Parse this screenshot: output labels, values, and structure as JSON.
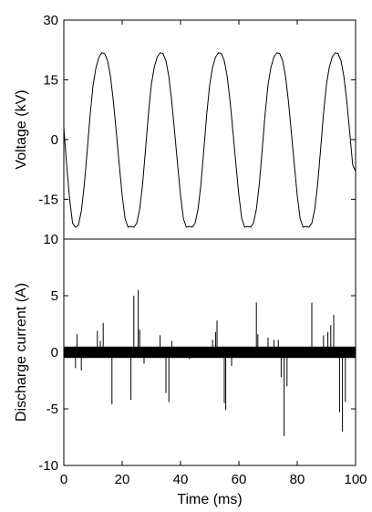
{
  "chart_data": [
    {
      "type": "line",
      "title": "",
      "xlabel": "",
      "ylabel": "Voltage (kV)",
      "xlim": [
        0,
        100
      ],
      "ylim": [
        -25,
        30
      ],
      "yticks": [
        30,
        15,
        0,
        -15
      ],
      "y_tick_labels": [
        "30",
        "15",
        "0",
        "-15"
      ],
      "grid": false,
      "legend": "none",
      "line_color": "#000000",
      "series": [
        {
          "x": [
            0,
            1,
            2,
            3,
            4,
            5,
            6,
            7,
            8,
            9,
            10,
            11,
            12,
            13,
            14,
            15,
            16,
            17,
            18,
            19,
            20,
            21,
            22,
            23,
            24,
            25,
            26,
            27,
            28,
            29,
            30,
            31,
            32,
            33,
            34,
            35,
            36,
            37,
            38,
            39,
            40,
            41,
            42,
            43,
            44,
            45,
            46,
            47,
            48,
            49,
            50,
            51,
            52,
            53,
            54,
            55,
            56,
            57,
            58,
            59,
            60,
            61,
            62,
            63,
            64,
            65,
            66,
            67,
            68,
            69,
            70,
            71,
            72,
            73,
            74,
            75,
            76,
            77,
            78,
            79,
            80,
            81,
            82,
            83,
            84,
            85,
            86,
            87,
            88,
            89,
            90,
            91,
            92,
            93,
            94,
            95,
            96,
            97,
            98,
            99,
            100
          ],
          "values": [
            3.0,
            -6.6,
            -15.0,
            -21.0,
            -22.0,
            -21.5,
            -18.0,
            -11.5,
            -3.0,
            6.0,
            13.5,
            18.0,
            20.6,
            21.8,
            21.6,
            19.8,
            15.8,
            9.5,
            1.7,
            -6.3,
            -14.0,
            -19.9,
            -22.0,
            -21.8,
            -22.0,
            -21.0,
            -17.5,
            -11.2,
            -2.5,
            6.5,
            13.8,
            18.2,
            20.7,
            21.8,
            21.6,
            19.8,
            15.8,
            9.5,
            1.7,
            -6.3,
            -14.0,
            -19.9,
            -22.0,
            -21.8,
            -22.0,
            -21.0,
            -17.5,
            -11.2,
            -2.5,
            6.5,
            13.8,
            18.2,
            20.7,
            21.8,
            21.6,
            19.8,
            15.8,
            9.5,
            1.7,
            -6.3,
            -14.0,
            -19.9,
            -22.0,
            -21.8,
            -22.0,
            -21.0,
            -17.5,
            -11.2,
            -2.5,
            6.5,
            13.8,
            18.2,
            20.7,
            21.8,
            21.6,
            19.8,
            15.8,
            9.5,
            1.7,
            -6.3,
            -14.0,
            -19.9,
            -22.0,
            -21.8,
            -22.0,
            -21.0,
            -17.5,
            -11.2,
            -2.5,
            6.5,
            13.8,
            18.2,
            20.7,
            21.8,
            21.6,
            19.8,
            15.8,
            9.5,
            1.7,
            -6.3,
            -8.0
          ]
        }
      ]
    },
    {
      "type": "line",
      "title": "",
      "xlabel": "Time (ms)",
      "ylabel": "Discharge current (A)",
      "xlim": [
        0,
        100
      ],
      "ylim": [
        -10,
        10
      ],
      "xticks": [
        0,
        20,
        40,
        60,
        80,
        100
      ],
      "x_tick_labels": [
        "0",
        "20",
        "40",
        "60",
        "80",
        "100"
      ],
      "yticks": [
        10,
        5,
        0,
        -5,
        -10
      ],
      "y_tick_labels": [
        "10",
        "5",
        "0",
        "-5",
        "-10"
      ],
      "grid": false,
      "legend": "none",
      "line_color": "#000000",
      "noise_band": [
        -0.5,
        0.5
      ],
      "spikes": [
        {
          "x": 4.5,
          "y": 1.6
        },
        {
          "x": 4.0,
          "y": -1.4
        },
        {
          "x": 6.0,
          "y": -1.6
        },
        {
          "x": 11.5,
          "y": 1.9
        },
        {
          "x": 12.5,
          "y": 1.0
        },
        {
          "x": 13.5,
          "y": 2.6
        },
        {
          "x": 16.5,
          "y": -4.6
        },
        {
          "x": 23.0,
          "y": -4.2
        },
        {
          "x": 24.0,
          "y": 5.0
        },
        {
          "x": 25.5,
          "y": 5.5
        },
        {
          "x": 26.0,
          "y": 2.0
        },
        {
          "x": 27.5,
          "y": -1.0
        },
        {
          "x": 33.0,
          "y": 1.5
        },
        {
          "x": 35.0,
          "y": -3.6
        },
        {
          "x": 36.0,
          "y": -4.4
        },
        {
          "x": 37.0,
          "y": 1.0
        },
        {
          "x": 43.0,
          "y": -0.6
        },
        {
          "x": 51.0,
          "y": 1.1
        },
        {
          "x": 52.0,
          "y": 1.8
        },
        {
          "x": 52.5,
          "y": 2.8
        },
        {
          "x": 55.0,
          "y": -4.5
        },
        {
          "x": 55.5,
          "y": -5.1
        },
        {
          "x": 57.5,
          "y": -1.2
        },
        {
          "x": 66.0,
          "y": 4.4
        },
        {
          "x": 66.5,
          "y": 1.6
        },
        {
          "x": 70.0,
          "y": 1.3
        },
        {
          "x": 72.0,
          "y": 1.1
        },
        {
          "x": 73.5,
          "y": 1.1
        },
        {
          "x": 74.5,
          "y": -2.2
        },
        {
          "x": 75.5,
          "y": -7.4
        },
        {
          "x": 76.5,
          "y": -3.0
        },
        {
          "x": 85.0,
          "y": 4.4
        },
        {
          "x": 89.0,
          "y": 1.5
        },
        {
          "x": 90.5,
          "y": 1.8
        },
        {
          "x": 91.5,
          "y": 2.4
        },
        {
          "x": 92.5,
          "y": 3.3
        },
        {
          "x": 94.5,
          "y": -5.3
        },
        {
          "x": 95.5,
          "y": -7.0
        },
        {
          "x": 96.5,
          "y": -4.4
        }
      ]
    }
  ]
}
